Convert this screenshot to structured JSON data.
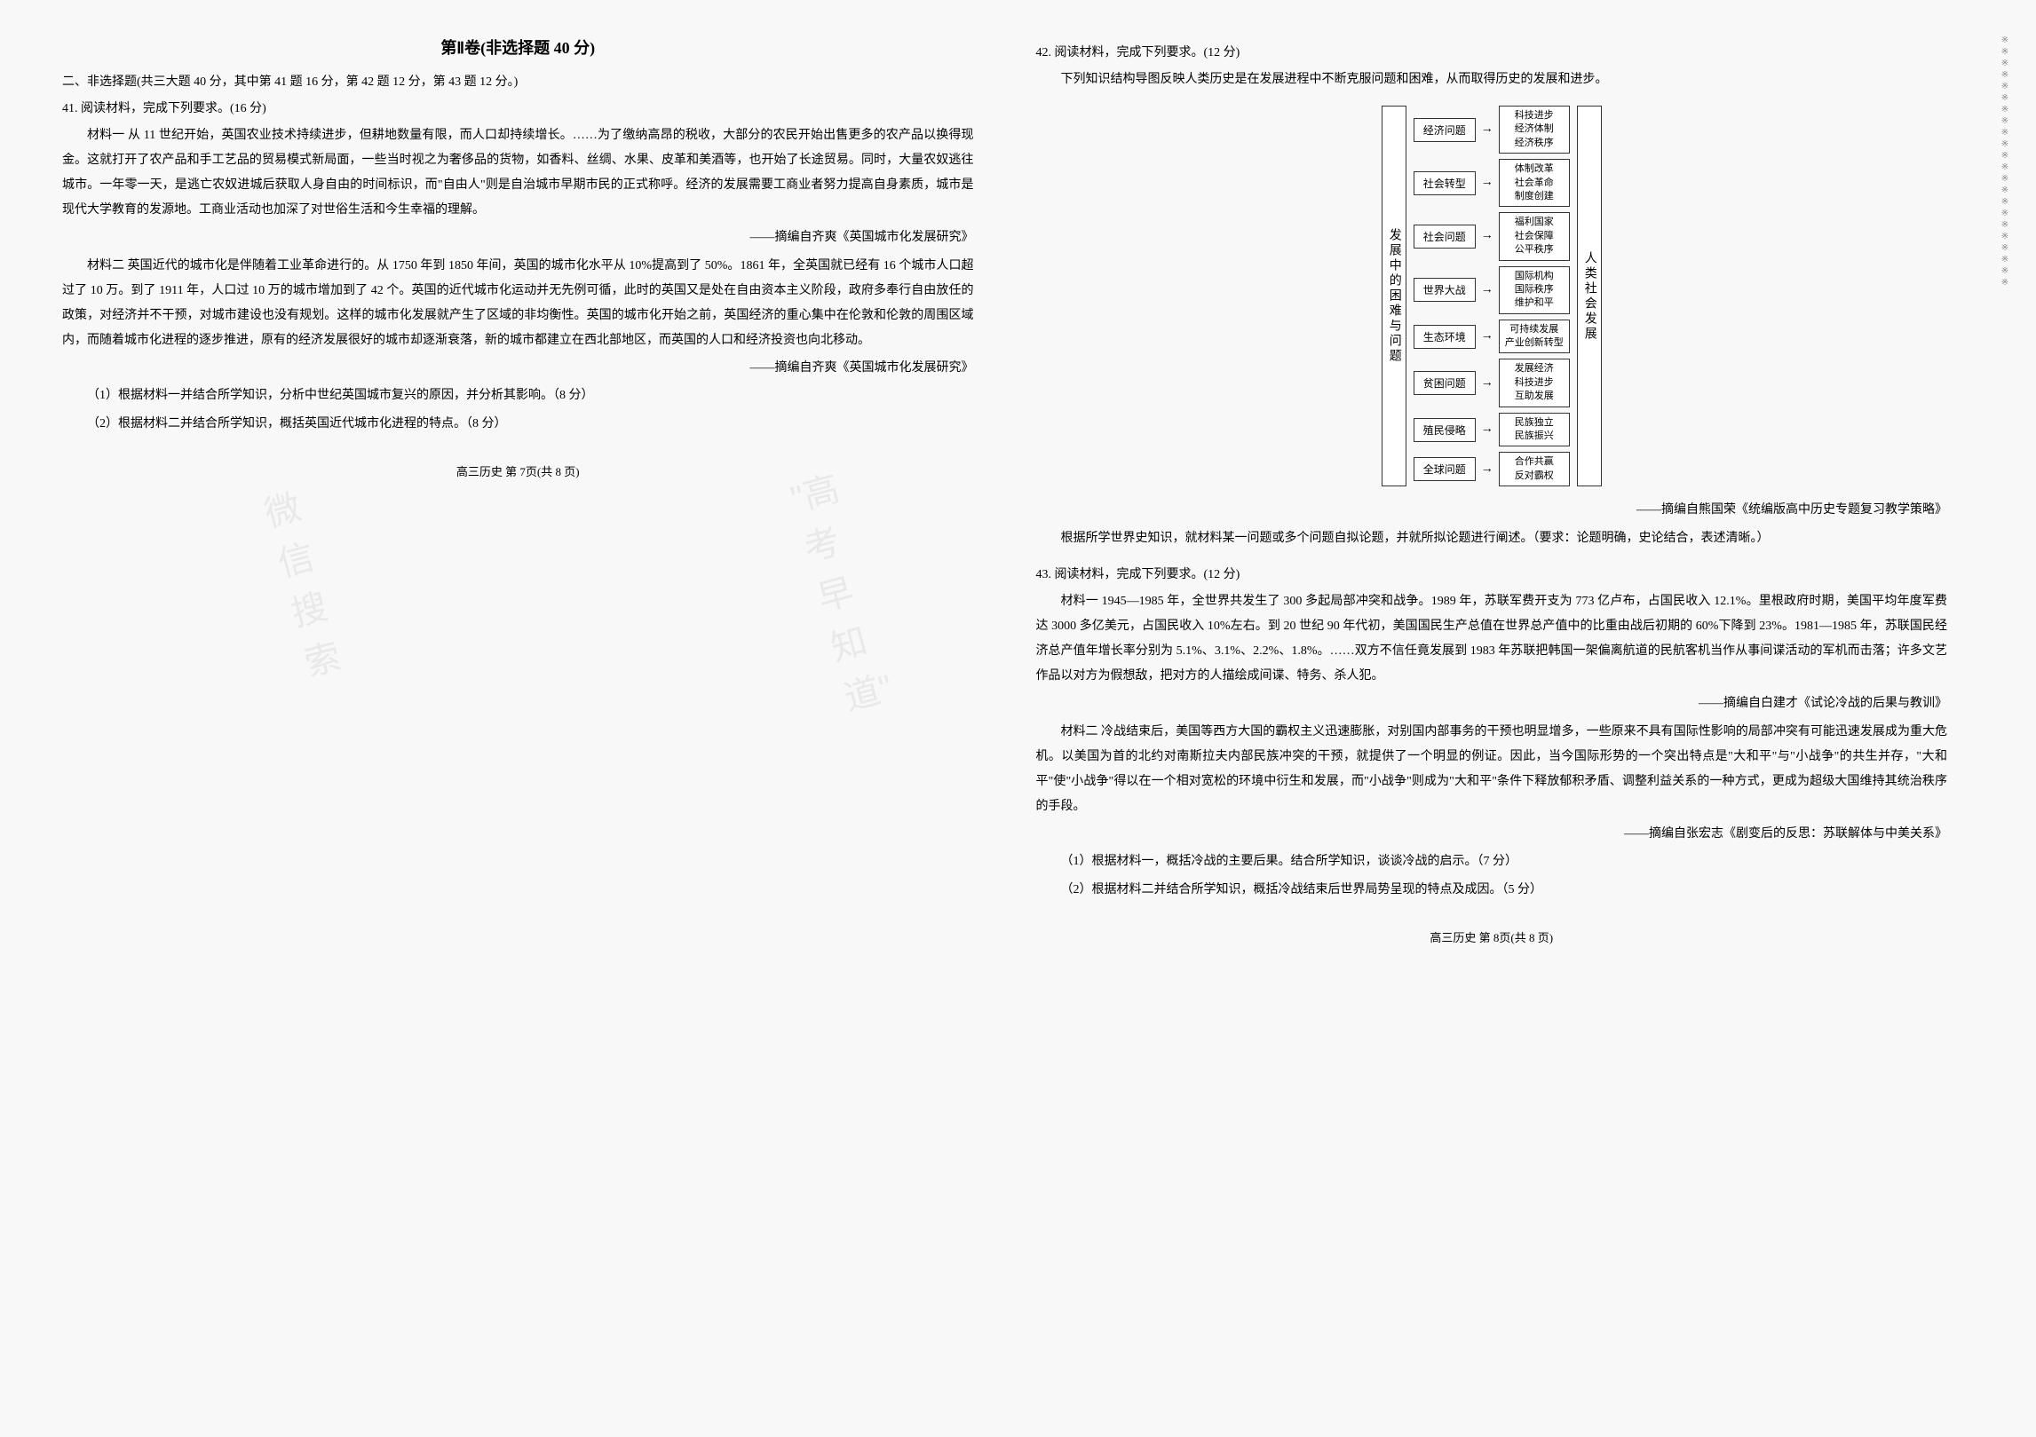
{
  "leftPage": {
    "sectionTitle": "第Ⅱ卷(非选择题  40 分)",
    "instructions": "二、非选择题(共三大题 40 分，其中第 41 题 16 分，第 42 题 12 分，第 43 题 12 分。)",
    "q41": {
      "header": "41. 阅读材料，完成下列要求。(16 分)",
      "material1": "材料一  从 11 世纪开始，英国农业技术持续进步，但耕地数量有限，而人口却持续增长。……为了缴纳高昂的税收，大部分的农民开始出售更多的农产品以换得现金。这就打开了农产品和手工艺品的贸易模式新局面，一些当时视之为奢侈品的货物，如香料、丝绸、水果、皮革和美酒等，也开始了长途贸易。同时，大量农奴逃往城市。一年零一天，是逃亡农奴进城后获取人身自由的时间标识，而\"自由人\"则是自治城市早期市民的正式称呼。经济的发展需要工商业者努力提高自身素质，城市是现代大学教育的发源地。工商业活动也加深了对世俗生活和今生幸福的理解。",
      "source1": "——摘编自齐爽《英国城市化发展研究》",
      "material2": "材料二  英国近代的城市化是伴随着工业革命进行的。从 1750 年到 1850 年间，英国的城市化水平从 10%提高到了 50%。1861 年，全英国就已经有 16 个城市人口超过了 10 万。到了 1911 年，人口过 10 万的城市增加到了 42 个。英国的近代城市化运动并无先例可循，此时的英国又是处在自由资本主义阶段，政府多奉行自由放任的政策，对经济并不干预，对城市建设也没有规划。这样的城市化发展就产生了区域的非均衡性。英国的城市化开始之前，英国经济的重心集中在伦敦和伦敦的周围区域内，而随着城市化进程的逐步推进，原有的经济发展很好的城市却逐渐衰落，新的城市都建立在西北部地区，而英国的人口和经济投资也向北移动。",
      "source2": "——摘编自齐爽《英国城市化发展研究》",
      "subQ1": "（1）根据材料一并结合所学知识，分析中世纪英国城市复兴的原因，并分析其影响。（8 分）",
      "subQ2": "（2）根据材料二并结合所学知识，概括英国近代城市化进程的特点。（8 分）"
    },
    "footer": "高三历史  第 7页(共 8 页)"
  },
  "rightPage": {
    "q42": {
      "header": "42. 阅读材料，完成下列要求。(12 分)",
      "intro": "下列知识结构导图反映人类历史是在发展进程中不断克服问题和困难，从而取得历史的发展和进步。",
      "leftLabel": "发展中的困难与问题",
      "rightLabel": "人类社会发展",
      "rows": [
        {
          "left": "经济问题",
          "right": "科技进步\n经济体制\n经济秩序"
        },
        {
          "left": "社会转型",
          "right": "体制改革\n社会革命\n制度创建"
        },
        {
          "left": "社会问题",
          "right": "福利国家\n社会保障\n公平秩序"
        },
        {
          "left": "世界大战",
          "right": "国际机构\n国际秩序\n维护和平"
        },
        {
          "left": "生态环境",
          "right": "可持续发展\n产业创新转型"
        },
        {
          "left": "贫困问题",
          "right": "发展经济\n科技进步\n互助发展"
        },
        {
          "left": "殖民侵略",
          "right": "民族独立\n民族振兴"
        },
        {
          "left": "全球问题",
          "right": "合作共赢\n反对霸权"
        }
      ],
      "source": "——摘编自熊国荣《统编版高中历史专题复习教学策略》",
      "requirement": "根据所学世界史知识，就材料某一问题或多个问题自拟论题，并就所拟论题进行阐述。（要求：论题明确，史论结合，表述清晰。）"
    },
    "q43": {
      "header": "43. 阅读材料，完成下列要求。(12 分)",
      "material1": "材料一  1945—1985 年，全世界共发生了 300 多起局部冲突和战争。1989 年，苏联军费开支为 773 亿卢布，占国民收入 12.1%。里根政府时期，美国平均年度军费达 3000 多亿美元，占国民收入 10%左右。到 20 世纪 90 年代初，美国国民生产总值在世界总产值中的比重由战后初期的 60%下降到 23%。1981—1985 年，苏联国民经济总产值年增长率分别为 5.1%、3.1%、2.2%、1.8%。……双方不信任竟发展到 1983 年苏联把韩国一架偏离航道的民航客机当作从事间谍活动的军机而击落；许多文艺作品以对方为假想敌，把对方的人描绘成间谍、特务、杀人犯。",
      "source1": "——摘编自白建才《试论冷战的后果与教训》",
      "material2": "材料二  冷战结束后，美国等西方大国的霸权主义迅速膨胀，对别国内部事务的干预也明显增多，一些原来不具有国际性影响的局部冲突有可能迅速发展成为重大危机。以美国为首的北约对南斯拉夫内部民族冲突的干预，就提供了一个明显的例证。因此，当今国际形势的一个突出特点是\"大和平\"与\"小战争\"的共生并存，\"大和平\"使\"小战争\"得以在一个相对宽松的环境中衍生和发展，而\"小战争\"则成为\"大和平\"条件下释放郁积矛盾、调整利益关系的一种方式，更成为超级大国维持其统治秩序的手段。",
      "source2": "——摘编自张宏志《剧变后的反思：苏联解体与中美关系》",
      "subQ1": "（1）根据材料一，概括冷战的主要后果。结合所学知识，谈谈冷战的启示。（7 分）",
      "subQ2": "（2）根据材料二并结合所学知识，概括冷战结束后世界局势呈现的特点及成因。（5 分）"
    },
    "footer": "高三历史  第 8页(共 8 页)"
  },
  "watermarks": {
    "wm1": "微信搜索",
    "wm2": "\"高考早知道\""
  },
  "styling": {
    "background": "#f8f8f8",
    "fontFamily": "SimSun",
    "titleFontSize": 18,
    "bodyFontSize": 14,
    "lineHeight": 2.0,
    "borderColor": "#333333",
    "boxBg": "#ffffff",
    "watermarkColor": "rgba(150,150,150,0.15)"
  }
}
